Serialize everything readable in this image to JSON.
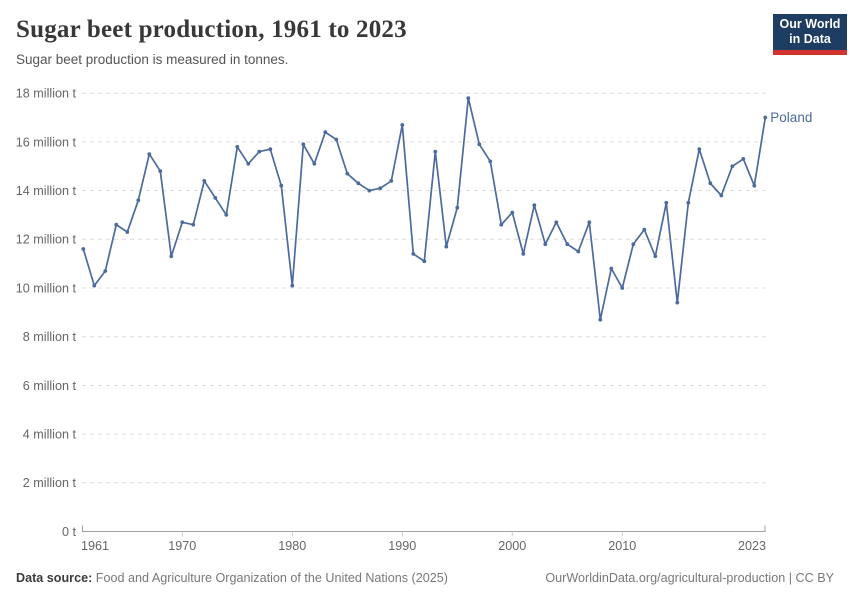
{
  "header": {
    "title": "Sugar beet production, 1961 to 2023",
    "subtitle": "Sugar beet production is measured in tonnes."
  },
  "logo": {
    "line1": "Our World",
    "line2": "in Data",
    "bg_color": "#1d3d63",
    "accent_color": "#d1342f"
  },
  "chart_data": {
    "type": "line",
    "title": "Sugar beet production, 1961 to 2023",
    "unit": "tonnes",
    "xlim": [
      1961,
      2023
    ],
    "ylim": [
      0,
      18
    ],
    "grid": true,
    "legend_position": "end-of-line-label",
    "x_ticks": [
      1961,
      1970,
      1980,
      1990,
      2000,
      2010,
      2023
    ],
    "y_ticks": [
      {
        "value": 0,
        "label": "0 t"
      },
      {
        "value": 2,
        "label": "2 million t"
      },
      {
        "value": 4,
        "label": "4 million t"
      },
      {
        "value": 6,
        "label": "6 million t"
      },
      {
        "value": 8,
        "label": "8 million t"
      },
      {
        "value": 10,
        "label": "10 million t"
      },
      {
        "value": 12,
        "label": "12 million t"
      },
      {
        "value": 14,
        "label": "14 million t"
      },
      {
        "value": 16,
        "label": "16 million t"
      },
      {
        "value": 18,
        "label": "18 million t"
      }
    ],
    "x": [
      1961,
      1962,
      1963,
      1964,
      1965,
      1966,
      1967,
      1968,
      1969,
      1970,
      1971,
      1972,
      1973,
      1974,
      1975,
      1976,
      1977,
      1978,
      1979,
      1980,
      1981,
      1982,
      1983,
      1984,
      1985,
      1986,
      1987,
      1988,
      1989,
      1990,
      1991,
      1992,
      1993,
      1994,
      1995,
      1996,
      1997,
      1998,
      1999,
      2000,
      2001,
      2002,
      2003,
      2004,
      2005,
      2006,
      2007,
      2008,
      2009,
      2010,
      2011,
      2012,
      2013,
      2014,
      2015,
      2016,
      2017,
      2018,
      2019,
      2020,
      2021,
      2022,
      2023
    ],
    "series": [
      {
        "name": "Poland",
        "color": "#4c6a9c",
        "unit_scale": "million t",
        "values": [
          11.6,
          10.1,
          10.7,
          12.6,
          12.3,
          13.6,
          15.5,
          14.8,
          11.3,
          12.7,
          12.6,
          14.4,
          13.7,
          13.0,
          15.8,
          15.1,
          15.6,
          15.7,
          14.2,
          10.1,
          15.9,
          15.1,
          16.4,
          16.1,
          14.7,
          14.3,
          14.0,
          14.1,
          14.4,
          16.7,
          11.4,
          11.1,
          15.6,
          11.7,
          13.3,
          17.8,
          15.9,
          15.2,
          12.6,
          13.1,
          11.4,
          13.4,
          11.8,
          12.7,
          11.8,
          11.5,
          12.7,
          8.7,
          10.8,
          10.0,
          11.8,
          12.4,
          11.3,
          13.5,
          9.4,
          13.5,
          15.7,
          14.3,
          13.8,
          15.0,
          15.3,
          14.2,
          17.0
        ]
      }
    ],
    "colors": {
      "gridline": "#dcdcdc",
      "axis": "#a1a1a1",
      "tick_text": "#666666",
      "decade_tick": "#cccccc"
    }
  },
  "footer": {
    "source_label": "Data source:",
    "source_text": " Food and Agriculture Organization of the United Nations (2025)",
    "right_text": "OurWorldinData.org/agricultural-production | CC BY"
  }
}
